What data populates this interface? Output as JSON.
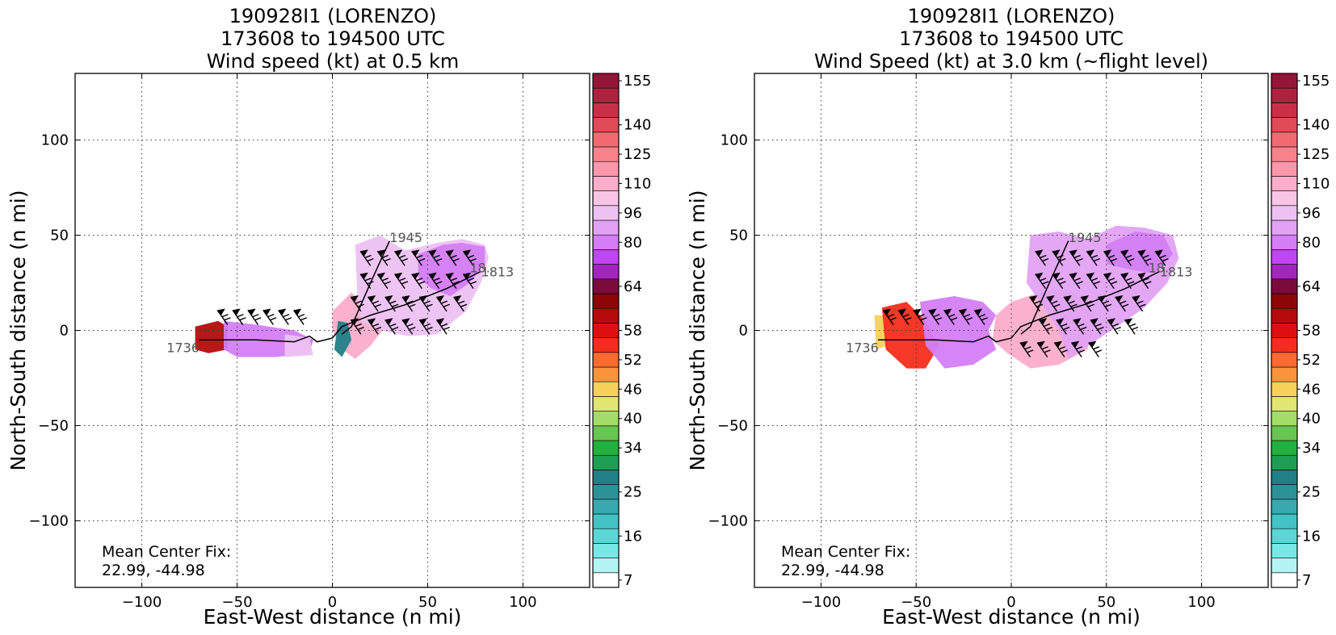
{
  "chart_data": [
    {
      "type": "heatmap",
      "title": [
        "190928I1 (LORENZO)",
        "173608 to 194500 UTC",
        "Wind speed (kt) at 0.5 km"
      ],
      "xlabel": "East-West distance (n mi)",
      "ylabel": "North-South distance (n mi)",
      "xlim": [
        -135,
        135
      ],
      "ylim": [
        -135,
        135
      ],
      "xticks": [
        -100,
        -50,
        0,
        50,
        100
      ],
      "yticks": [
        -100,
        -50,
        0,
        50,
        100
      ],
      "grid": true,
      "annotation": [
        "Mean Center Fix:",
        "22.99, -44.98"
      ],
      "track_labels": [
        {
          "text": "1736",
          "x": -87,
          "y": -9
        },
        {
          "text": "1945",
          "x": 30,
          "y": 49
        },
        {
          "text": "18..",
          "x": 72,
          "y": 33
        },
        {
          "text": "1813",
          "x": 78,
          "y": 31
        }
      ],
      "track": [
        [
          -70,
          -5
        ],
        [
          -40,
          -5
        ],
        [
          -20,
          -6
        ],
        [
          -12,
          -3
        ],
        [
          -8,
          -6
        ],
        [
          0,
          -4
        ],
        [
          5,
          2
        ],
        [
          10,
          4
        ],
        [
          20,
          8
        ],
        [
          40,
          14
        ],
        [
          60,
          22
        ],
        [
          78,
          31
        ]
      ],
      "track_branch": [
        [
          5,
          -2
        ],
        [
          10,
          2
        ],
        [
          20,
          25
        ],
        [
          30,
          47
        ]
      ],
      "wind_regions": [
        {
          "speed": 60,
          "points": [
            [
              -72,
              2
            ],
            [
              -60,
              5
            ],
            [
              -55,
              2
            ],
            [
              -55,
              -10
            ],
            [
              -65,
              -12
            ],
            [
              -72,
              -10
            ]
          ]
        },
        {
          "speed": 85,
          "points": [
            [
              -57,
              5
            ],
            [
              -40,
              3
            ],
            [
              -20,
              0
            ],
            [
              -10,
              -5
            ],
            [
              -12,
              -12
            ],
            [
              -30,
              -14
            ],
            [
              -50,
              -14
            ],
            [
              -57,
              -10
            ]
          ]
        },
        {
          "speed": 100,
          "points": [
            [
              -25,
              -2
            ],
            [
              -12,
              -4
            ],
            [
              -10,
              -13
            ],
            [
              -25,
              -14
            ]
          ]
        },
        {
          "speed": 115,
          "points": [
            [
              0,
              10
            ],
            [
              10,
              20
            ],
            [
              15,
              15
            ],
            [
              30,
              5
            ],
            [
              20,
              -8
            ],
            [
              12,
              -15
            ],
            [
              5,
              -10
            ],
            [
              0,
              0
            ]
          ]
        },
        {
          "speed": 100,
          "points": [
            [
              12,
              45
            ],
            [
              25,
              50
            ],
            [
              38,
              42
            ],
            [
              55,
              46
            ],
            [
              68,
              48
            ],
            [
              80,
              45
            ],
            [
              82,
              38
            ],
            [
              78,
              25
            ],
            [
              70,
              10
            ],
            [
              55,
              -2
            ],
            [
              40,
              -3
            ],
            [
              25,
              0
            ],
            [
              15,
              5
            ],
            [
              13,
              20
            ]
          ]
        },
        {
          "speed": 80,
          "points": [
            [
              45,
              40
            ],
            [
              58,
              45
            ],
            [
              68,
              46
            ],
            [
              80,
              44
            ],
            [
              80,
              35
            ],
            [
              72,
              25
            ],
            [
              62,
              18
            ],
            [
              52,
              22
            ],
            [
              45,
              28
            ]
          ]
        },
        {
          "speed": 30,
          "points": [
            [
              3,
              5
            ],
            [
              8,
              4
            ],
            [
              10,
              -5
            ],
            [
              5,
              -14
            ],
            [
              1,
              -10
            ]
          ]
        }
      ],
      "barb_rows": [
        {
          "y": 3,
          "x0": -55,
          "x1": -8,
          "step": 8
        },
        {
          "y": 34,
          "x0": 20,
          "x1": 76,
          "step": 9
        },
        {
          "y": 22,
          "x0": 20,
          "x1": 76,
          "step": 9
        },
        {
          "y": 10,
          "x0": 15,
          "x1": 72,
          "step": 9
        },
        {
          "y": -2,
          "x0": 15,
          "x1": 60,
          "step": 9
        }
      ]
    },
    {
      "type": "heatmap",
      "title": [
        "190928I1 (LORENZO)",
        "173608 to 194500 UTC",
        "Wind Speed (kt) at 3.0 km (~flight level)"
      ],
      "xlabel": "East-West distance (n mi)",
      "ylabel": "North-South distance (n mi)",
      "xlim": [
        -135,
        135
      ],
      "ylim": [
        -135,
        135
      ],
      "xticks": [
        -100,
        -50,
        0,
        50,
        100
      ],
      "yticks": [
        -100,
        -50,
        0,
        50,
        100
      ],
      "grid": true,
      "annotation": [
        "Mean Center Fix:",
        "22.99, -44.98"
      ],
      "track_labels": [
        {
          "text": "1736",
          "x": -87,
          "y": -9
        },
        {
          "text": "1945",
          "x": 30,
          "y": 49
        },
        {
          "text": "18..",
          "x": 72,
          "y": 33
        },
        {
          "text": "1813",
          "x": 78,
          "y": 31
        }
      ],
      "track": [
        [
          -70,
          -5
        ],
        [
          -40,
          -5
        ],
        [
          -20,
          -6
        ],
        [
          -12,
          -3
        ],
        [
          -8,
          -6
        ],
        [
          0,
          -4
        ],
        [
          5,
          2
        ],
        [
          10,
          4
        ],
        [
          20,
          8
        ],
        [
          40,
          14
        ],
        [
          60,
          22
        ],
        [
          78,
          31
        ]
      ],
      "track_branch": [
        [
          5,
          -2
        ],
        [
          10,
          2
        ],
        [
          20,
          25
        ],
        [
          30,
          47
        ]
      ],
      "wind_regions": [
        {
          "speed": 46,
          "points": [
            [
              -72,
              8
            ],
            [
              -66,
              8
            ],
            [
              -65,
              -8
            ],
            [
              -71,
              -10
            ]
          ]
        },
        {
          "speed": 55,
          "points": [
            [
              -68,
              12
            ],
            [
              -55,
              15
            ],
            [
              -45,
              5
            ],
            [
              -38,
              -8
            ],
            [
              -45,
              -20
            ],
            [
              -55,
              -20
            ],
            [
              -66,
              -10
            ]
          ]
        },
        {
          "speed": 85,
          "points": [
            [
              -48,
              15
            ],
            [
              -30,
              18
            ],
            [
              -15,
              15
            ],
            [
              -8,
              8
            ],
            [
              -12,
              0
            ],
            [
              -8,
              -10
            ],
            [
              -20,
              -18
            ],
            [
              -35,
              -20
            ],
            [
              -45,
              -8
            ]
          ]
        },
        {
          "speed": 110,
          "points": [
            [
              -8,
              8
            ],
            [
              0,
              15
            ],
            [
              15,
              20
            ],
            [
              30,
              22
            ],
            [
              40,
              15
            ],
            [
              45,
              5
            ],
            [
              40,
              -10
            ],
            [
              25,
              -18
            ],
            [
              10,
              -20
            ],
            [
              -2,
              -12
            ],
            [
              -10,
              -5
            ]
          ]
        },
        {
          "speed": 90,
          "points": [
            [
              10,
              50
            ],
            [
              25,
              52
            ],
            [
              40,
              48
            ],
            [
              55,
              55
            ],
            [
              70,
              54
            ],
            [
              85,
              50
            ],
            [
              88,
              38
            ],
            [
              82,
              25
            ],
            [
              70,
              12
            ],
            [
              60,
              5
            ],
            [
              45,
              -5
            ],
            [
              30,
              -15
            ],
            [
              25,
              0
            ],
            [
              15,
              15
            ],
            [
              8,
              25
            ]
          ]
        },
        {
          "speed": 80,
          "points": [
            [
              50,
              45
            ],
            [
              65,
              52
            ],
            [
              80,
              50
            ],
            [
              85,
              40
            ],
            [
              75,
              30
            ],
            [
              62,
              32
            ],
            [
              50,
              35
            ]
          ]
        }
      ],
      "barb_rows": [
        {
          "y": 3,
          "x0": -62,
          "x1": -8,
          "step": 8
        },
        {
          "y": 34,
          "x0": 18,
          "x1": 84,
          "step": 9
        },
        {
          "y": 22,
          "x0": 18,
          "x1": 80,
          "step": 9
        },
        {
          "y": 10,
          "x0": 15,
          "x1": 75,
          "step": 9
        },
        {
          "y": -2,
          "x0": 20,
          "x1": 70,
          "step": 9
        },
        {
          "y": -14,
          "x0": 10,
          "x1": 50,
          "step": 9
        }
      ]
    }
  ],
  "colorbar": {
    "labels": [
      "7",
      "16",
      "25",
      "34",
      "40",
      "46",
      "52",
      "58",
      "64",
      "80",
      "96",
      "110",
      "125",
      "140",
      "155"
    ],
    "bins": [
      {
        "min": 7,
        "color": "#ffffff"
      },
      {
        "min": 10,
        "color": "#b4f5f3"
      },
      {
        "min": 13,
        "color": "#78e8e6"
      },
      {
        "min": 16,
        "color": "#5ad6d7"
      },
      {
        "min": 19,
        "color": "#44c2c5"
      },
      {
        "min": 22,
        "color": "#38aaaf"
      },
      {
        "min": 25,
        "color": "#2c9298"
      },
      {
        "min": 28,
        "color": "#208086"
      },
      {
        "min": 31,
        "color": "#1e9e55"
      },
      {
        "min": 34,
        "color": "#22b13d"
      },
      {
        "min": 37,
        "color": "#69c451"
      },
      {
        "min": 40,
        "color": "#a4dc6a"
      },
      {
        "min": 43,
        "color": "#e1e572"
      },
      {
        "min": 46,
        "color": "#f7d25a"
      },
      {
        "min": 49,
        "color": "#f9943c"
      },
      {
        "min": 52,
        "color": "#fb6a32"
      },
      {
        "min": 55,
        "color": "#f52d1c"
      },
      {
        "min": 58,
        "color": "#dd0f12"
      },
      {
        "min": 60,
        "color": "#b50b0b"
      },
      {
        "min": 62,
        "color": "#8e0507"
      },
      {
        "min": 64,
        "color": "#7a0c3c"
      },
      {
        "min": 72,
        "color": "#a225bd"
      },
      {
        "min": 76,
        "color": "#c244f3"
      },
      {
        "min": 80,
        "color": "#d37ef4"
      },
      {
        "min": 88,
        "color": "#e1a2f4"
      },
      {
        "min": 96,
        "color": "#edc1f3"
      },
      {
        "min": 103,
        "color": "#f8c5e6"
      },
      {
        "min": 110,
        "color": "#fbadc9"
      },
      {
        "min": 118,
        "color": "#fa97ab"
      },
      {
        "min": 125,
        "color": "#f8828c"
      },
      {
        "min": 132,
        "color": "#f26a71"
      },
      {
        "min": 140,
        "color": "#e14b58"
      },
      {
        "min": 147,
        "color": "#c93048"
      },
      {
        "min": 151,
        "color": "#b02140"
      },
      {
        "min": 155,
        "color": "#951538"
      }
    ]
  }
}
